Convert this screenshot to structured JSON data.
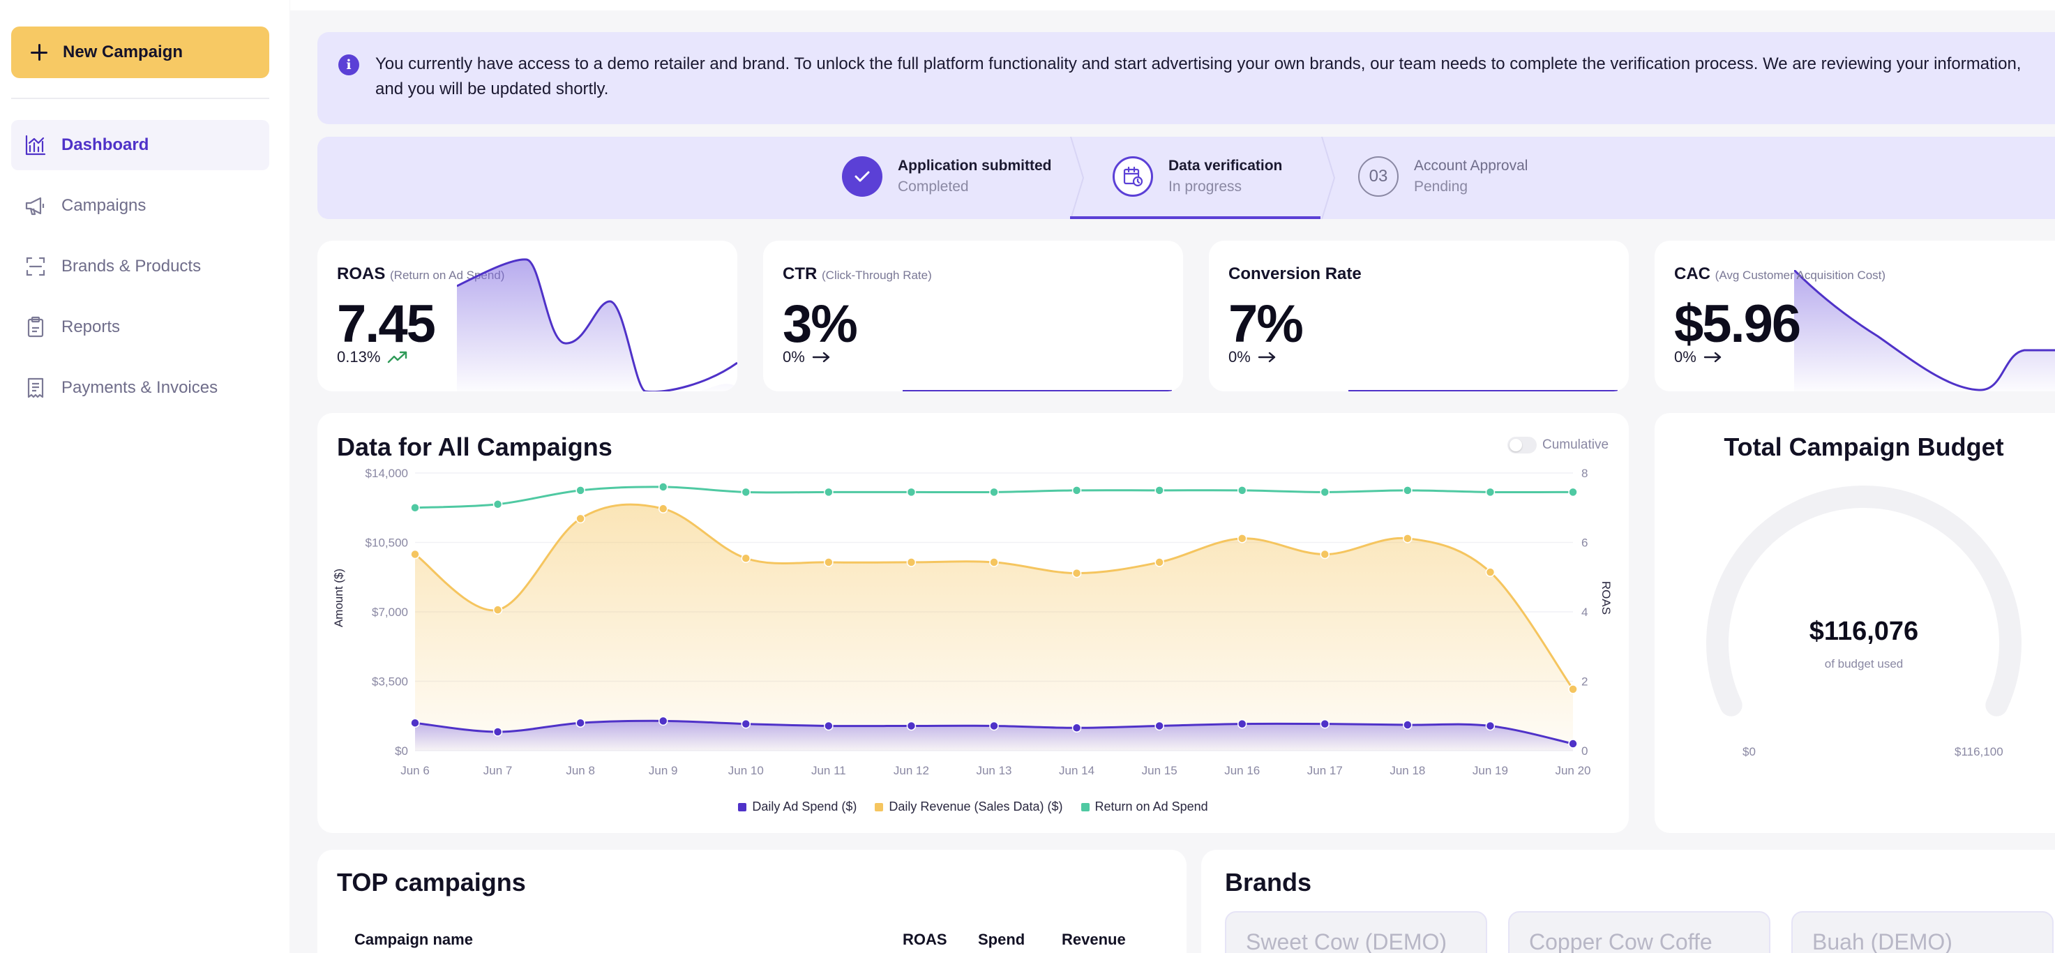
{
  "sidebar": {
    "new_campaign": "New Campaign",
    "items": [
      {
        "label": "Dashboard",
        "icon": "chart-icon",
        "active": true
      },
      {
        "label": "Campaigns",
        "icon": "megaphone-icon",
        "active": false
      },
      {
        "label": "Brands & Products",
        "icon": "scan-icon",
        "active": false
      },
      {
        "label": "Reports",
        "icon": "clipboard-icon",
        "active": false
      },
      {
        "label": "Payments & Invoices",
        "icon": "receipt-icon",
        "active": false
      }
    ]
  },
  "banner": {
    "text": "You currently have access to a demo retailer and brand. To unlock the full platform functionality and start advertising your own brands, our team needs to complete the verification process. We are reviewing your information, and you will be updated shortly."
  },
  "steps": [
    {
      "title": "Application submitted",
      "status": "Completed",
      "marker": "check"
    },
    {
      "title": "Data verification",
      "status": "In progress",
      "marker": "calendar"
    },
    {
      "title": "Account Approval",
      "status": "Pending",
      "marker": "03"
    }
  ],
  "kpis": [
    {
      "name": "ROAS",
      "sub": "(Return on Ad Spend)",
      "value": "7.45",
      "change": "0.13%",
      "trend": "up"
    },
    {
      "name": "CTR",
      "sub": "(Click-Through Rate)",
      "value": "3%",
      "change": "0%",
      "trend": "flat"
    },
    {
      "name": "Conversion Rate",
      "sub": "",
      "value": "7%",
      "change": "0%",
      "trend": "flat"
    },
    {
      "name": "CAC",
      "sub": "(Avg Customer Acquisition Cost)",
      "value": "$5.96",
      "change": "0%",
      "trend": "flat"
    }
  ],
  "campaign_chart": {
    "title": "Data for All Campaigns",
    "toggle_label": "Cumulative",
    "y_left_label": "Amount ($)",
    "y_right_label": "ROAS",
    "y_left_ticks": [
      "$0",
      "$3,500",
      "$7,000",
      "$10,500",
      "$14,000"
    ],
    "y_right_ticks": [
      "0",
      "2",
      "4",
      "6",
      "8"
    ]
  },
  "chart_data": {
    "type": "line",
    "x": [
      "Jun 6",
      "Jun 7",
      "Jun 8",
      "Jun 9",
      "Jun 10",
      "Jun 11",
      "Jun 12",
      "Jun 13",
      "Jun 14",
      "Jun 15",
      "Jun 16",
      "Jun 17",
      "Jun 18",
      "Jun 19",
      "Jun 20"
    ],
    "series": [
      {
        "name": "Daily Ad Spend ($)",
        "axis": "left",
        "color": "#4f32c8",
        "values": [
          1400,
          950,
          1400,
          1500,
          1350,
          1250,
          1250,
          1250,
          1150,
          1250,
          1350,
          1350,
          1300,
          1250,
          350
        ]
      },
      {
        "name": "Daily Revenue (Sales Data) ($)",
        "axis": "left",
        "color": "#f5c55f",
        "values": [
          9900,
          7100,
          11700,
          12200,
          9700,
          9500,
          9500,
          9500,
          8950,
          9500,
          10700,
          9900,
          10700,
          9000,
          3100
        ]
      },
      {
        "name": "Return on Ad Spend",
        "axis": "right",
        "color": "#4fc9a2",
        "values": [
          7.0,
          7.1,
          7.5,
          7.6,
          7.45,
          7.45,
          7.45,
          7.45,
          7.5,
          7.5,
          7.5,
          7.45,
          7.5,
          7.45,
          7.45
        ]
      }
    ],
    "ylim": [
      0,
      14000
    ],
    "y2lim": [
      0,
      8
    ],
    "legend": "bottom-center"
  },
  "budget": {
    "title": "Total Campaign Budget",
    "value": "$116,076",
    "caption": "of budget used",
    "min_label": "$0",
    "max_label": "$116,100",
    "used_fraction": 0.9998
  },
  "top_campaigns": {
    "title": "TOP campaigns",
    "columns": [
      "Campaign name",
      "ROAS",
      "Spend",
      "Revenue"
    ]
  },
  "brands": {
    "title": "Brands",
    "items": [
      "Sweet Cow (DEMO)",
      "Copper Cow Coffe",
      "Buah (DEMO)"
    ]
  },
  "colors": {
    "accent": "#4f32c8",
    "button": "#f7c964",
    "banner": "#e8e6fd",
    "revenue": "#f5c55f",
    "roas": "#4fc9a2"
  }
}
